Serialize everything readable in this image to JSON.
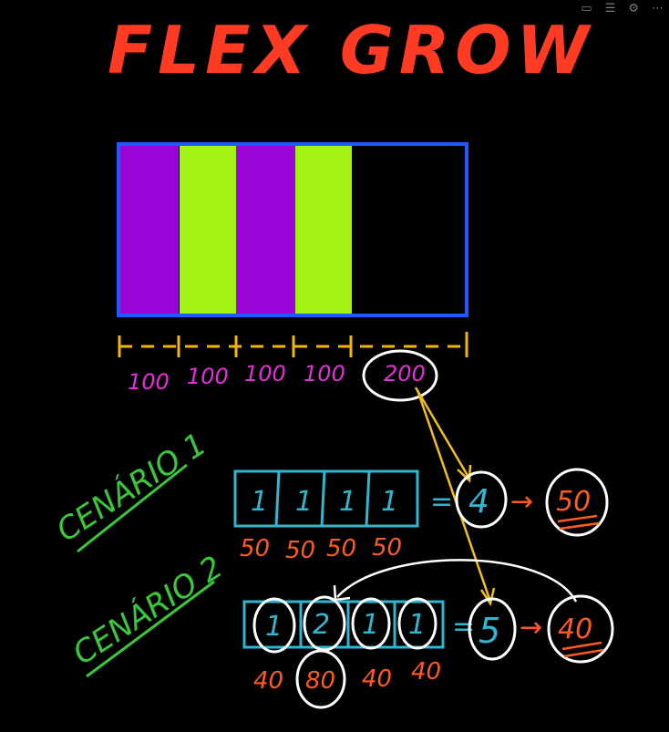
{
  "toolbar": {
    "icons": [
      "present-icon",
      "notes-icon",
      "settings-icon",
      "more-icon"
    ],
    "glyphs": [
      "▭",
      "☰",
      "⚙",
      "⋯"
    ]
  },
  "title": "FLEX GROW",
  "colors": {
    "title": "#ff3b24",
    "purple": "#9b06d8",
    "lime": "#a4f215",
    "container": "#1a5cff",
    "ruler": "#f2b705",
    "pink": "#e62cd8",
    "cyan": "#2fb6d0",
    "orange": "#ff5a1f",
    "white": "#ffffff",
    "green": "#39c83a"
  },
  "ruler_labels": [
    "100",
    "100",
    "100",
    "100",
    "200"
  ],
  "scenario1": {
    "label": "CENÁRIO 1",
    "grow_values": [
      "1",
      "1",
      "1",
      "1"
    ],
    "equals": "=",
    "total": "4",
    "arrow": "→",
    "result": "50",
    "widths": [
      "50",
      "50",
      "50",
      "50"
    ]
  },
  "scenario2": {
    "label": "CENÁRIO 2",
    "grow_values": [
      "1",
      "2",
      "1",
      "1"
    ],
    "equals": "=",
    "total": "5",
    "arrow": "→",
    "result": "40",
    "widths": [
      "40",
      "80",
      "40",
      "40"
    ]
  }
}
